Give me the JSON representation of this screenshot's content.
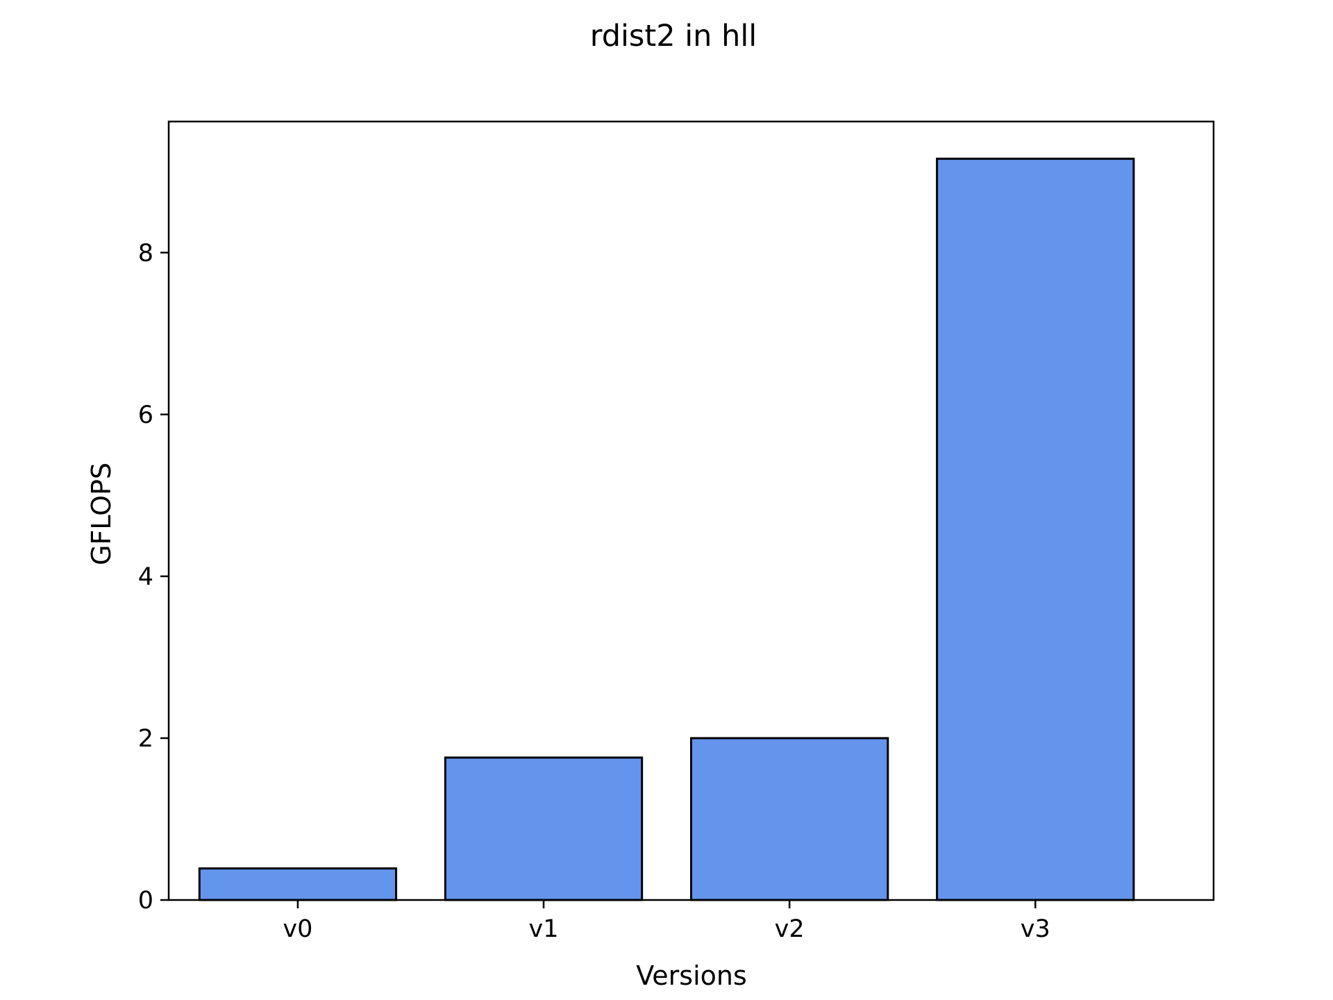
{
  "chart_data": {
    "type": "bar",
    "title": "rdist2 in hll",
    "xlabel": "Versions",
    "ylabel": "GFLOPS",
    "categories": [
      "v0",
      "v1",
      "v2",
      "v3"
    ],
    "values": [
      0.39,
      1.76,
      2.0,
      9.16
    ],
    "ylim": [
      0,
      9.62
    ],
    "yticks": [
      0,
      2,
      4,
      6,
      8
    ],
    "grid": false,
    "bar_color": "#6495ED",
    "edge_color": "#000000"
  }
}
